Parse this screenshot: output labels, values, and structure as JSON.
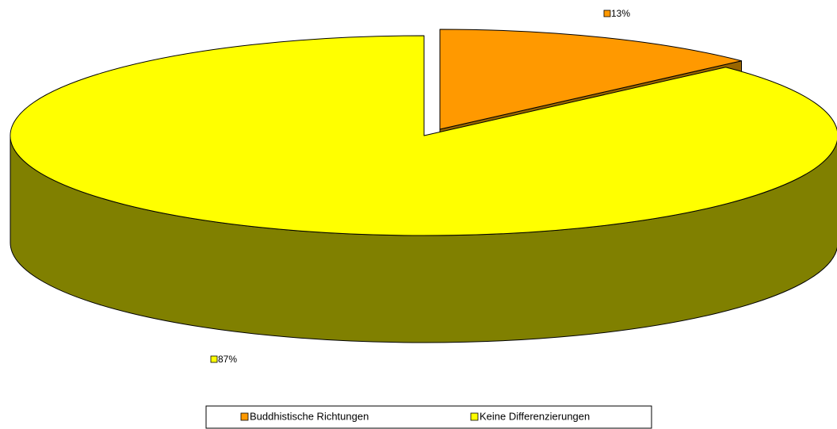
{
  "chart_data": {
    "type": "pie3d",
    "categories": [
      "Buddhistische Richtungen",
      "Keine Differenzierungen"
    ],
    "values": [
      13,
      87
    ],
    "value_labels": [
      "13%",
      "87%"
    ],
    "colors": [
      "#FF9900",
      "#FFFF00"
    ],
    "side_colors": [
      "#996600",
      "#808000"
    ],
    "legend": "bottom"
  }
}
